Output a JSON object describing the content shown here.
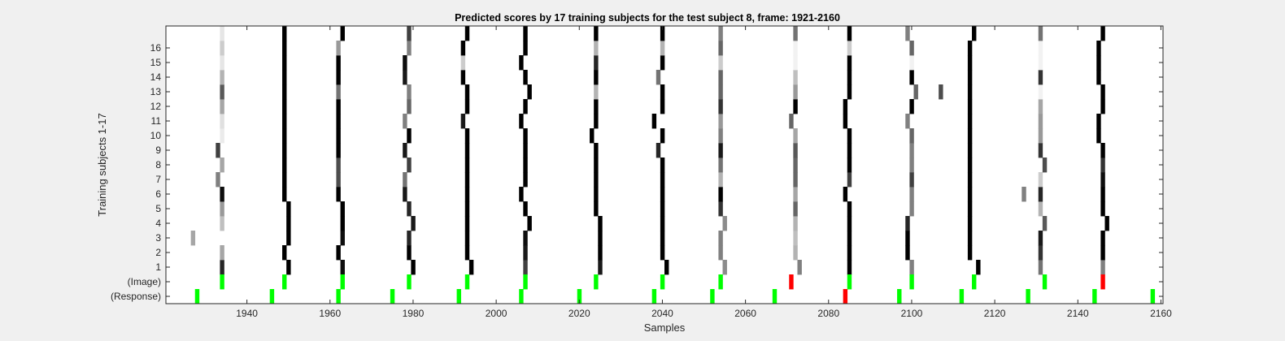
{
  "chart_data": {
    "type": "heatmap",
    "title": "Predicted scores by 17 training subjects for the test subject 8, frame: 1921-2160",
    "xlabel": "Samples",
    "ylabel": "Training subjects 1-17",
    "xlim": [
      1921,
      2160
    ],
    "x_ticks": [
      1940,
      1960,
      1980,
      2000,
      2020,
      2040,
      2060,
      2080,
      2100,
      2120,
      2140,
      2160
    ],
    "y_rows": [
      "(Response)",
      "(Image)",
      "1",
      "2",
      "3",
      "4",
      "5",
      "6",
      "7",
      "8",
      "9",
      "10",
      "11",
      "12",
      "13",
      "14",
      "15",
      "16",
      "17"
    ],
    "y_tick_labels": [
      "(Response)",
      "(Image)",
      "1",
      "2",
      "3",
      "4",
      "5",
      "6",
      "7",
      "8",
      "9",
      "10",
      "11",
      "12",
      "13",
      "14",
      "15",
      "16"
    ],
    "response_markers": {
      "green": [
        1928,
        1946,
        1962,
        1975,
        1991,
        2006,
        2020,
        2038,
        2052,
        2067,
        2097,
        2112,
        2128,
        2144,
        2158
      ],
      "red": [
        2084
      ]
    },
    "image_markers": {
      "green": [
        1934,
        1949,
        1963,
        1979,
        1993,
        2007,
        2024,
        2040,
        2054,
        2085,
        2100,
        2115,
        2132
      ],
      "red": [
        2071,
        2146
      ]
    },
    "score_columns": [
      {
        "x": [
          1934,
          1934,
          1927,
          1934,
          1934,
          1934,
          1933,
          1934,
          1933,
          1934,
          1934,
          1934,
          1934,
          1934,
          1934,
          1934,
          1934
        ],
        "level": [
          0.85,
          0.35,
          0.35,
          0.25,
          0.4,
          0.95,
          0.5,
          0.35,
          0.75,
          0.08,
          0.12,
          0.35,
          0.65,
          0.3,
          0.1,
          0.2,
          0.1
        ]
      },
      {
        "x": [
          1950,
          1949,
          1950,
          1950,
          1950,
          1949,
          1949,
          1949,
          1949,
          1949,
          1949,
          1949,
          1949,
          1949,
          1949,
          1949,
          1949
        ],
        "level": [
          1,
          1,
          1,
          1,
          1,
          1,
          1,
          1,
          1,
          1,
          1,
          1,
          1,
          1,
          1,
          1,
          1
        ]
      },
      {
        "x": [
          1963,
          1962,
          1963,
          1963,
          1963,
          1962,
          1962,
          1962,
          1962,
          1962,
          1962,
          1962,
          1962,
          1962,
          1962,
          1962,
          1963
        ],
        "level": [
          0.95,
          1,
          0.95,
          1,
          1,
          1,
          0.7,
          0.7,
          1,
          1,
          1,
          1,
          0.55,
          1,
          1,
          0.4,
          1
        ]
      },
      {
        "x": [
          1980,
          1979,
          1979,
          1980,
          1979,
          1978,
          1978,
          1979,
          1978,
          1979,
          1978,
          1979,
          1979,
          1978,
          1978,
          1979,
          1979
        ],
        "level": [
          1,
          1,
          0.85,
          0.9,
          0.85,
          0.9,
          0.55,
          0.75,
          0.9,
          1,
          0.5,
          0.6,
          0.5,
          0.9,
          0.95,
          0.5,
          0.75
        ]
      },
      {
        "x": [
          1994,
          1993,
          1993,
          1993,
          1993,
          1993,
          1993,
          1993,
          1993,
          1993,
          1992,
          1993,
          1993,
          1992,
          1992,
          1992,
          1993
        ],
        "level": [
          1,
          1,
          1,
          1,
          1,
          1,
          1,
          1,
          1,
          1,
          0.9,
          1,
          1,
          1,
          0.2,
          1,
          1
        ]
      },
      {
        "x": [
          2007,
          2007,
          2007,
          2008,
          2007,
          2006,
          2007,
          2007,
          2007,
          2007,
          2006,
          2007,
          2008,
          2007,
          2006,
          2007,
          2007
        ],
        "level": [
          0.75,
          0.9,
          0.95,
          1,
          1,
          1,
          1,
          1,
          1,
          1,
          1,
          1,
          1,
          1,
          1,
          1,
          1
        ]
      },
      {
        "x": [
          2025,
          2025,
          2025,
          2025,
          2024,
          2024,
          2024,
          2024,
          2024,
          2023,
          2024,
          2024,
          2024,
          2024,
          2024,
          2024,
          2024
        ],
        "level": [
          0.9,
          1,
          1,
          1,
          1,
          1,
          1,
          1,
          1,
          1,
          1,
          1,
          0.3,
          1,
          0.85,
          0.3,
          1
        ]
      },
      {
        "x": [
          2041,
          2040,
          2040,
          2040,
          2040,
          2040,
          2040,
          2040,
          2039,
          2040,
          2038,
          2040,
          2040,
          2039,
          2040,
          2040,
          2040
        ],
        "level": [
          1,
          1,
          1,
          1,
          1,
          1,
          1,
          1,
          0.85,
          1,
          1,
          1,
          1,
          0.55,
          1,
          0.3,
          1
        ]
      },
      {
        "x": [
          2055,
          2054,
          2054,
          2055,
          2054,
          2054,
          2054,
          2054,
          2054,
          2054,
          2054,
          2054,
          2054,
          2054,
          2054,
          2054,
          2054
        ],
        "level": [
          0.45,
          0.5,
          0.5,
          0.45,
          0.8,
          1,
          0.3,
          0.55,
          0.9,
          0.5,
          0.4,
          0.8,
          0.6,
          0.6,
          0.2,
          0.6,
          0.5
        ]
      },
      {
        "x": [
          2073,
          2072,
          2072,
          2072,
          2072,
          2072,
          2072,
          2072,
          2072,
          2072,
          2071,
          2072,
          2072,
          2072,
          2072,
          2072,
          2072
        ],
        "level": [
          0.5,
          0.3,
          0.25,
          0.3,
          0.6,
          0.35,
          0.6,
          0.6,
          0.65,
          0.35,
          0.6,
          1,
          0.4,
          0.25,
          0.05,
          0.05,
          0.55
        ]
      },
      {
        "x": [
          2085,
          2085,
          2085,
          2085,
          2085,
          2084,
          2085,
          2085,
          2085,
          2085,
          2084,
          2084,
          2085,
          2085,
          2085,
          2085,
          2085
        ],
        "level": [
          1,
          1,
          1,
          1,
          1,
          1,
          0.75,
          1,
          1,
          1,
          1,
          1,
          1,
          1,
          1,
          0.2,
          1
        ]
      },
      {
        "x": [
          2100,
          2099,
          2099,
          2099,
          2100,
          2100,
          2100,
          2100,
          2100,
          2100,
          2099,
          2100,
          2101,
          2100,
          2100,
          2100,
          2099
        ],
        "level": [
          0.5,
          1,
          1,
          0.85,
          0.5,
          0.5,
          0.75,
          0.5,
          0.5,
          0.6,
          0.5,
          1,
          0.6,
          1,
          0.05,
          0.6,
          0.5
        ]
      },
      {
        "x": [
          2116,
          2114,
          2114,
          2114,
          2114,
          2114,
          2114,
          2114,
          2114,
          2114,
          2114,
          2114,
          2114,
          2114,
          2114,
          2114,
          2115
        ],
        "level": [
          1,
          1,
          1,
          1,
          1,
          1,
          1,
          1,
          1,
          1,
          1,
          1,
          1,
          1,
          1,
          1,
          1
        ]
      },
      {
        "x": [
          2131,
          2131,
          2131,
          2132,
          2131,
          2131,
          2131,
          2132,
          2131,
          2131,
          2131,
          2131,
          2131,
          2131,
          2131,
          2131,
          2131
        ],
        "level": [
          0.55,
          0.8,
          0.9,
          0.65,
          0.3,
          0.85,
          0.2,
          0.7,
          0.8,
          0.4,
          0.4,
          0.35,
          0.05,
          0.8,
          0.05,
          0.05,
          0.55
        ]
      },
      {
        "x": [
          2146,
          2146,
          2146,
          2147,
          2146,
          2146,
          2146,
          2146,
          2146,
          2145,
          2145,
          2146,
          2146,
          2145,
          2145,
          2145,
          2146
        ],
        "level": [
          0.5,
          1,
          1,
          1,
          1,
          1,
          0.95,
          0.8,
          1,
          1,
          1,
          1,
          1,
          1,
          1,
          1,
          1
        ]
      }
    ],
    "extra_score_cells": [
      {
        "x": 2107,
        "row": 13,
        "level": 0.7
      },
      {
        "x": 2127,
        "row": 6,
        "level": 0.5
      }
    ]
  }
}
